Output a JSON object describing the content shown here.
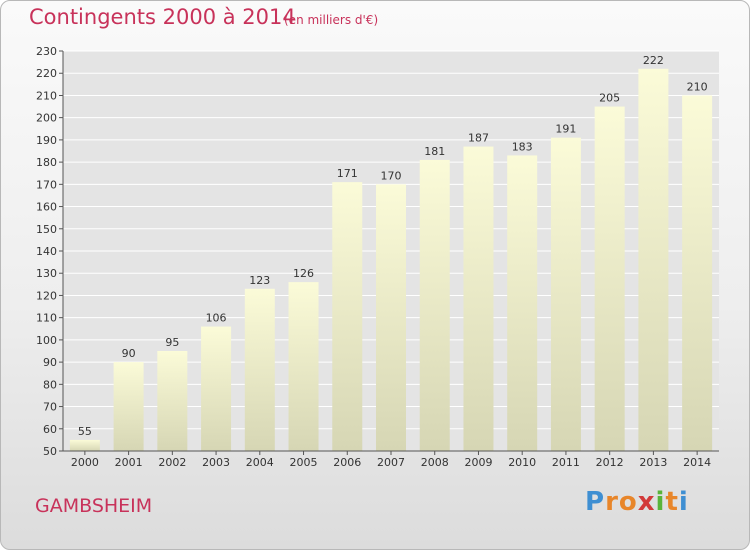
{
  "header": {
    "title": "Contingents 2000 à 2014",
    "subtitle": "(en milliers d'€)"
  },
  "footer": {
    "commune": "GAMBSHEIM",
    "logo_letters": [
      "P",
      "r",
      "o",
      "x",
      "i",
      "t",
      "i"
    ]
  },
  "colors": {
    "accent": "#c8325a",
    "bar_top": "#fbfbd8",
    "bar_bottom": "#d6d6b4",
    "grid": "#ffffff",
    "logo": [
      "#3f8fd2",
      "#e8862a",
      "#e8862a",
      "#d23a3a",
      "#59b43a",
      "#e8862a",
      "#3f8fd2"
    ]
  },
  "chart_data": {
    "type": "bar",
    "categories": [
      "2000",
      "2001",
      "2002",
      "2003",
      "2004",
      "2005",
      "2006",
      "2007",
      "2008",
      "2009",
      "2010",
      "2011",
      "2012",
      "2013",
      "2014"
    ],
    "values": [
      55,
      90,
      95,
      106,
      123,
      126,
      171,
      170,
      181,
      187,
      183,
      191,
      205,
      222,
      210
    ],
    "ylim": [
      50,
      230
    ],
    "yticks": [
      50,
      60,
      70,
      80,
      90,
      100,
      110,
      120,
      130,
      140,
      150,
      160,
      170,
      180,
      190,
      200,
      210,
      220,
      230
    ],
    "grid": true,
    "data_labels": true
  }
}
